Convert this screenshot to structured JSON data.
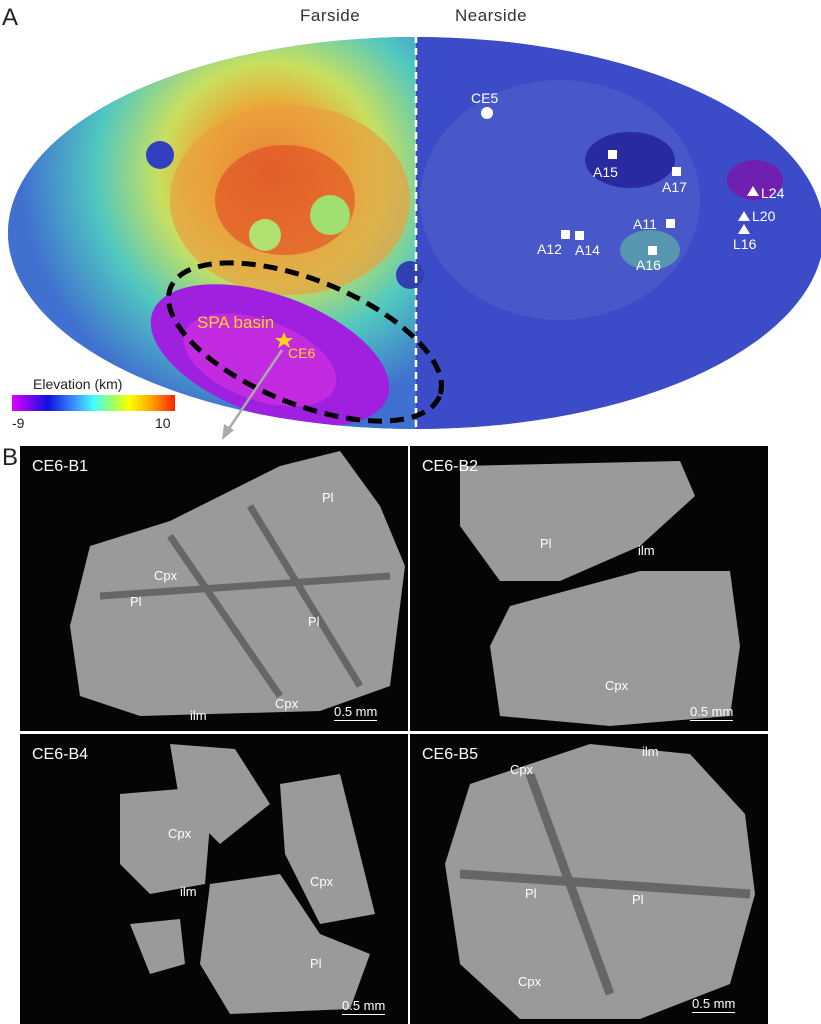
{
  "panel_a": {
    "letter": "A",
    "farside_label": "Farside",
    "nearside_label": "Nearside",
    "colorbar": {
      "title": "Elevation (km)",
      "min_label": "-9",
      "max_label": "10",
      "colors": [
        "#e000ff",
        "#2020e0",
        "#40a0ff",
        "#40ffff",
        "#a0ff60",
        "#ffff00",
        "#ffa000",
        "#ff3000"
      ]
    },
    "region_label": "SPA basin",
    "sites": {
      "ce5": "CE5",
      "ce6": "CE6",
      "a15": "A15",
      "a17": "A17",
      "a11": "A11",
      "a12": "A12",
      "a14": "A14",
      "a16": "A16",
      "l24": "L24",
      "l20": "L20",
      "l16": "L16"
    }
  },
  "panel_b": {
    "letter": "B",
    "scale_label": "0.5 mm",
    "samples": [
      {
        "title": "CE6-B1",
        "minerals": [
          "Pl",
          "Cpx",
          "Pl",
          "Pl",
          "ilm",
          "Cpx"
        ]
      },
      {
        "title": "CE6-B2",
        "minerals": [
          "Pl",
          "ilm",
          "Cpx"
        ]
      },
      {
        "title": "CE6-B4",
        "minerals": [
          "Cpx",
          "Cpx",
          "ilm",
          "Pl"
        ]
      },
      {
        "title": "CE6-B5",
        "minerals": [
          "ilm",
          "Cpx",
          "Pl",
          "Pl",
          "Cpx"
        ]
      }
    ]
  }
}
